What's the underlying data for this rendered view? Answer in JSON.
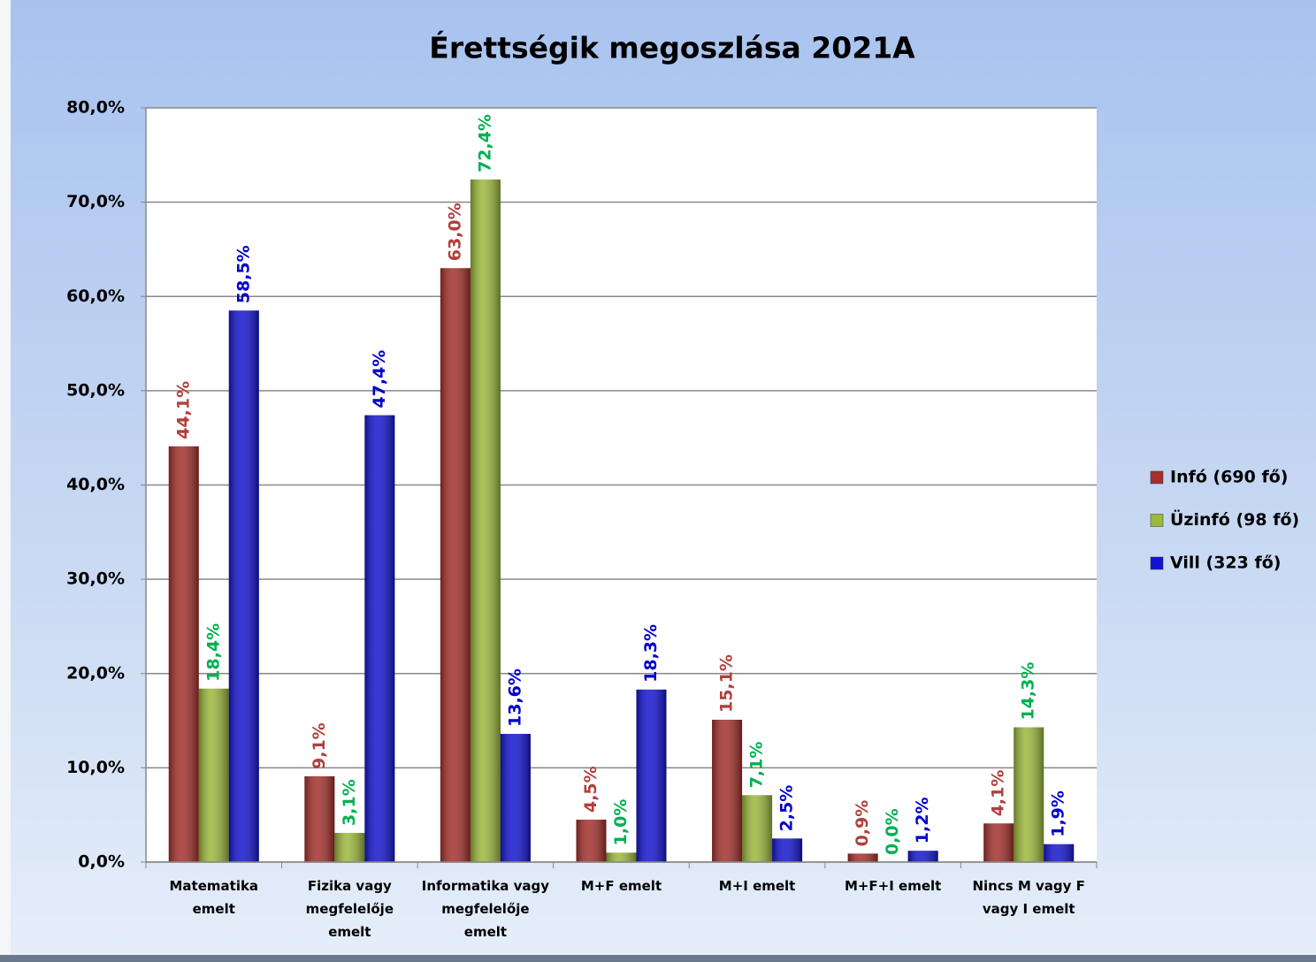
{
  "chart_data": {
    "type": "bar",
    "title": "Érettségik megoszlása 2021A",
    "categories": [
      "Matematika\nemelt",
      "Fizika vagy\nmegfelelője\nemelt",
      "Informatika vagy\nmegfelelője\nemelt",
      "M+F emelt",
      "M+I emelt",
      "M+F+I emelt",
      "Nincs M vagy F\nvagy I emelt"
    ],
    "series": [
      {
        "name": "Infó (690 fő)",
        "color": "#a3302c",
        "label_color": "#b0403c",
        "values": [
          44.1,
          9.1,
          63.0,
          4.5,
          15.1,
          0.9,
          4.1
        ],
        "value_labels": [
          "44,1%",
          "9,1%",
          "63,0%",
          "4,5%",
          "15,1%",
          "0,9%",
          "4,1%"
        ]
      },
      {
        "name": "Üzinfó (98 fő)",
        "color": "#9cb83c",
        "label_color": "#00b050",
        "values": [
          18.4,
          3.1,
          72.4,
          1.0,
          7.1,
          0.0,
          14.3
        ],
        "value_labels": [
          "18,4%",
          "3,1%",
          "72,4%",
          "1,0%",
          "7,1%",
          "0,0%",
          "14,3%"
        ]
      },
      {
        "name": "Vill (323 fő)",
        "color": "#1414d0",
        "label_color": "#0000cc",
        "values": [
          58.5,
          47.4,
          13.6,
          18.3,
          2.5,
          1.2,
          1.9
        ],
        "value_labels": [
          "58,5%",
          "47,4%",
          "13,6%",
          "18,3%",
          "2,5%",
          "1,2%",
          "1,9%"
        ]
      }
    ],
    "ylim": [
      0,
      80
    ],
    "yticks": [
      {
        "value": 0,
        "label": "0,0%"
      },
      {
        "value": 10,
        "label": "10,0%"
      },
      {
        "value": 20,
        "label": "20,0%"
      },
      {
        "value": 30,
        "label": "30,0%"
      },
      {
        "value": 40,
        "label": "40,0%"
      },
      {
        "value": 50,
        "label": "50,0%"
      },
      {
        "value": 60,
        "label": "60,0%"
      },
      {
        "value": 70,
        "label": "70,0%"
      },
      {
        "value": 80,
        "label": "80,0%"
      }
    ],
    "grid": true,
    "legend": "right"
  }
}
